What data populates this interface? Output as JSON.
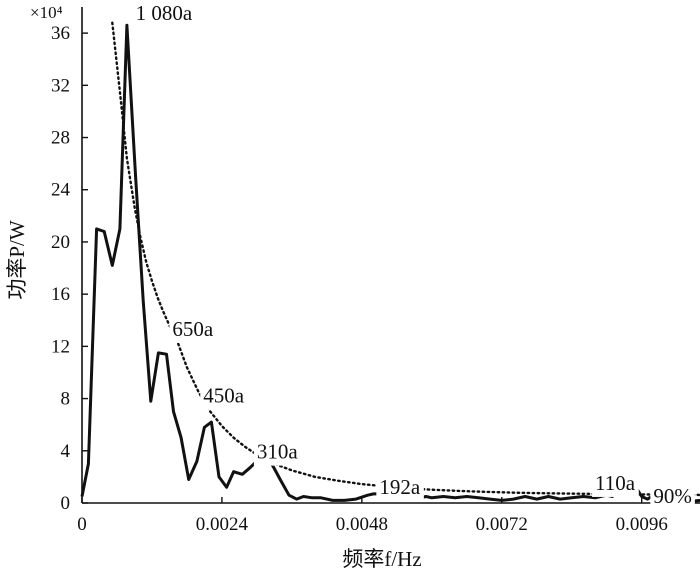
{
  "chart_data": {
    "type": "line",
    "xlabel": "频率f/Hz",
    "ylabel": "功率P/W",
    "y_multiplier": "×10⁴",
    "xlim": [
      0,
      0.0106
    ],
    "ylim": [
      0,
      38
    ],
    "x_ticks": [
      0,
      0.0024,
      0.0048,
      0.0072,
      0.0096
    ],
    "x_tick_labels": [
      "0",
      "0.0024",
      "0.0048",
      "0.0072",
      "0.0096"
    ],
    "y_ticks": [
      0,
      4,
      8,
      12,
      16,
      20,
      24,
      28,
      32,
      36
    ],
    "y_tick_labels": [
      "0",
      "4",
      "8",
      "12",
      "16",
      "20",
      "24",
      "28",
      "32",
      "36"
    ],
    "grid": false,
    "series": [
      {
        "style": "solid",
        "color": "#111111",
        "x": [
          0,
          0.00011,
          0.00025,
          0.00038,
          0.00052,
          0.00065,
          0.00077,
          0.00092,
          0.00105,
          0.00118,
          0.00131,
          0.00145,
          0.00157,
          0.0017,
          0.00183,
          0.00197,
          0.0021,
          0.00222,
          0.00235,
          0.00248,
          0.0026,
          0.00275,
          0.00288,
          0.00302,
          0.00315,
          0.00328,
          0.0034,
          0.00355,
          0.00368,
          0.0038,
          0.00395,
          0.0041,
          0.0043,
          0.0045,
          0.0047,
          0.0049,
          0.005,
          0.0052,
          0.0053,
          0.0055,
          0.0057,
          0.0059,
          0.006,
          0.0062,
          0.0064,
          0.0066,
          0.0068,
          0.007,
          0.0072,
          0.0074,
          0.0076,
          0.0078,
          0.008,
          0.0082,
          0.0084,
          0.0086,
          0.0088,
          0.009,
          0.0091,
          0.0092,
          0.0093,
          0.0094,
          0.0095,
          0.0096,
          0.0097,
          0.0098,
          0.0099,
          0.01,
          0.0102,
          0.0104,
          0.0106
        ],
        "y": [
          0.5,
          3,
          21,
          20.8,
          18.2,
          21,
          36.6,
          25,
          15.5,
          7.8,
          11.5,
          11.4,
          7,
          5,
          1.8,
          3.2,
          5.8,
          6.2,
          2,
          1.2,
          2.4,
          2.2,
          2.7,
          3.3,
          3.6,
          2.8,
          1.8,
          0.6,
          0.3,
          0.5,
          0.4,
          0.4,
          0.2,
          0.2,
          0.3,
          0.6,
          0.7,
          0.7,
          1.2,
          0.7,
          0.3,
          0.5,
          0.4,
          0.5,
          0.4,
          0.5,
          0.4,
          0.3,
          0.2,
          0.3,
          0.5,
          0.3,
          0.5,
          0.3,
          0.4,
          0.5,
          0.4,
          0.6,
          0.5,
          1.2,
          2.1,
          2,
          1.2,
          0.5,
          0.3,
          0.6,
          0.3,
          0.2,
          0.3,
          0.1,
          0.2
        ]
      },
      {
        "style": "dotted",
        "color": "#111111",
        "x": [
          0.00052,
          0.00065,
          0.00077,
          0.0009,
          0.001,
          0.0011,
          0.0012,
          0.0013,
          0.0014,
          0.0015,
          0.0016,
          0.0018,
          0.002,
          0.0022,
          0.0024,
          0.0026,
          0.0028,
          0.003,
          0.0033,
          0.0036,
          0.004,
          0.0044,
          0.0048,
          0.0052,
          0.0056,
          0.006,
          0.0065,
          0.007,
          0.0075,
          0.008,
          0.0085,
          0.009,
          0.0095,
          0.01,
          0.0106
        ],
        "y": [
          36.8,
          31.5,
          26.4,
          22.7,
          20.4,
          18.5,
          17.0,
          15.7,
          14.6,
          13.6,
          12.8,
          10.4,
          8.5,
          7.0,
          5.9,
          5.0,
          4.3,
          3.7,
          3.0,
          2.5,
          2.0,
          1.7,
          1.45,
          1.27,
          1.13,
          1.02,
          0.92,
          0.84,
          0.78,
          0.74,
          0.71,
          0.68,
          0.66,
          0.64,
          0.62
        ]
      }
    ],
    "annotations": [
      {
        "text": "1 080a",
        "x": 0.00092,
        "y": 37.0
      },
      {
        "text": "650a",
        "x": 0.00155,
        "y": 12.8
      },
      {
        "text": "450a",
        "x": 0.00208,
        "y": 7.7
      },
      {
        "text": "310a",
        "x": 0.003,
        "y": 3.4
      },
      {
        "text": "192a",
        "x": 0.0051,
        "y": 0.7
      },
      {
        "text": "110a",
        "x": 0.0088,
        "y": 1.0
      },
      {
        "text": "90%",
        "x": 0.0098,
        "y": 0.0
      }
    ]
  }
}
